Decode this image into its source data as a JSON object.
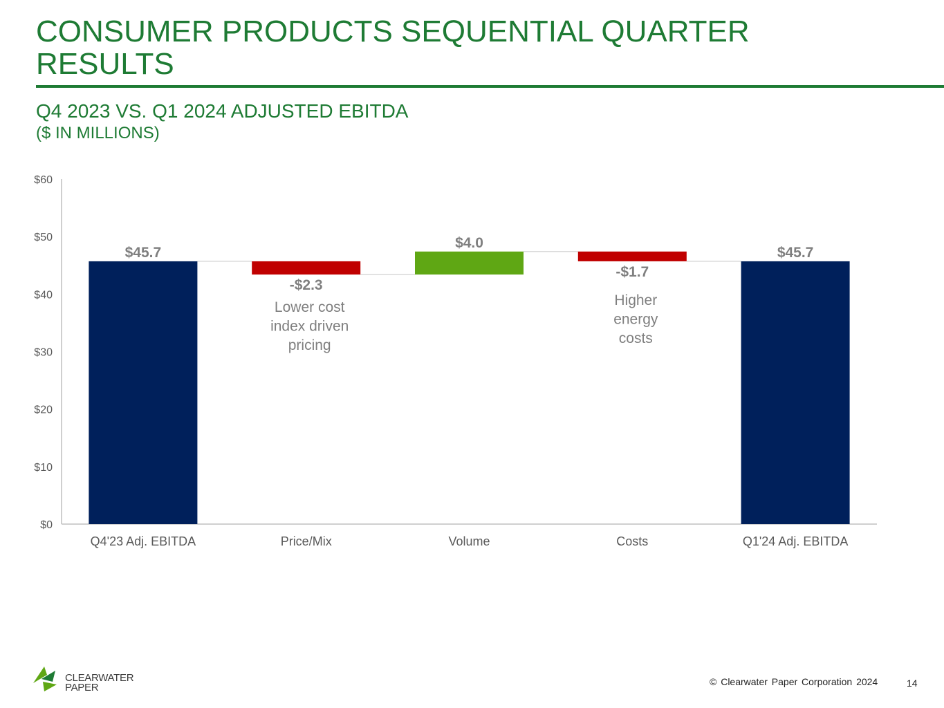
{
  "slide": {
    "title": "CONSUMER PRODUCTS SEQUENTIAL QUARTER RESULTS",
    "subtitle": "Q4 2023 VS. Q1 2024 ADJUSTED EBITDA",
    "subtitle2": "($ IN MILLIONS)",
    "footer": "© Clearwater Paper Corporation 2024",
    "page_number": "14",
    "logo_line1": "CLEARWATER",
    "logo_line2": "PAPER"
  },
  "colors": {
    "title_green": "#1e7b34",
    "total_bar": "#00205b",
    "decrease_bar": "#c00000",
    "increase_bar": "#5fa714",
    "label_gray": "#7f7f7f"
  },
  "chart_data": {
    "type": "bar",
    "subtype": "waterfall",
    "categories": [
      "Q4'23 Adj. EBITDA",
      "Price/Mix",
      "Volume",
      "Costs",
      "Q1'24 Adj. EBITDA"
    ],
    "values": [
      45.7,
      -2.3,
      4.0,
      -1.7,
      45.7
    ],
    "kinds": [
      "total",
      "decrease",
      "increase",
      "decrease",
      "total"
    ],
    "data_labels": [
      "$45.7",
      "-$2.3",
      "$4.0",
      "-$1.7",
      "$45.7"
    ],
    "annotations": [
      {
        "category": "Price/Mix",
        "lines": [
          "Lower cost",
          "index driven",
          "pricing"
        ]
      },
      {
        "category": "Costs",
        "lines": [
          "Higher",
          "energy",
          "costs"
        ]
      }
    ],
    "y_ticks": [
      "$0",
      "$10",
      "$20",
      "$30",
      "$40",
      "$50",
      "$60"
    ],
    "ylim": [
      0,
      60
    ],
    "grid": false,
    "legend": "none"
  }
}
